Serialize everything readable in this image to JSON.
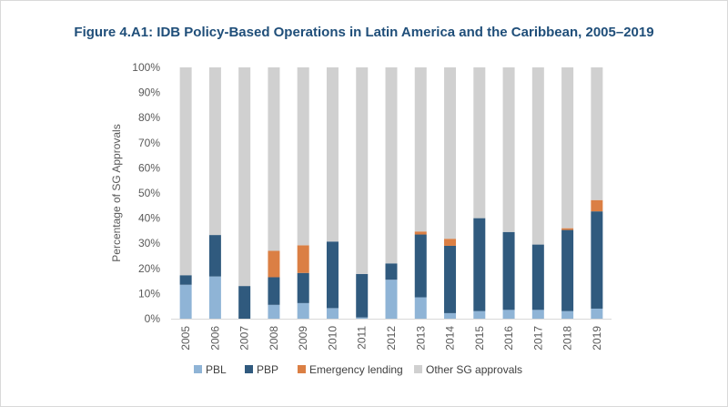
{
  "colors": {
    "PBL": "#8fb4d6",
    "PBP": "#305a7e",
    "Emergency lending": "#db7f44",
    "Other SG approvals": "#d0d0d0"
  },
  "chart_data": {
    "type": "bar",
    "stacked": true,
    "title": "Figure 4.A1: IDB Policy-Based Operations in Latin America and the Caribbean, 2005–2019",
    "xlabel": "",
    "ylabel": "Percentage of SG Approvals",
    "ylim": [
      0,
      100
    ],
    "y_ticks": [
      "0%",
      "10%",
      "20%",
      "30%",
      "40%",
      "50%",
      "60%",
      "70%",
      "80%",
      "90%",
      "100%"
    ],
    "categories": [
      "2005",
      "2006",
      "2007",
      "2008",
      "2009",
      "2010",
      "2011",
      "2012",
      "2013",
      "2014",
      "2015",
      "2016",
      "2017",
      "2018",
      "2019"
    ],
    "series": [
      {
        "name": "PBL",
        "values": [
          13.5,
          16.8,
          0,
          5.5,
          6.2,
          4.2,
          0.5,
          15.5,
          8.5,
          2.2,
          3.0,
          3.5,
          3.5,
          3.0,
          4.0
        ]
      },
      {
        "name": "PBP",
        "values": [
          3.8,
          16.5,
          13.0,
          11.0,
          12.0,
          26.5,
          17.3,
          6.5,
          25.0,
          26.8,
          37.0,
          31.0,
          26.0,
          32.3,
          38.7
        ]
      },
      {
        "name": "Emergency lending",
        "values": [
          0,
          0,
          0,
          10.5,
          11.0,
          0,
          0,
          0,
          1.2,
          2.8,
          0,
          0,
          0,
          0.7,
          4.5
        ]
      },
      {
        "name": "Other SG approvals",
        "values": [
          82.7,
          66.7,
          87.0,
          73.0,
          70.8,
          69.3,
          82.2,
          78.0,
          65.3,
          68.2,
          60.0,
          65.5,
          70.5,
          64.0,
          52.8
        ]
      }
    ],
    "legend_position": "bottom",
    "grid": false
  }
}
